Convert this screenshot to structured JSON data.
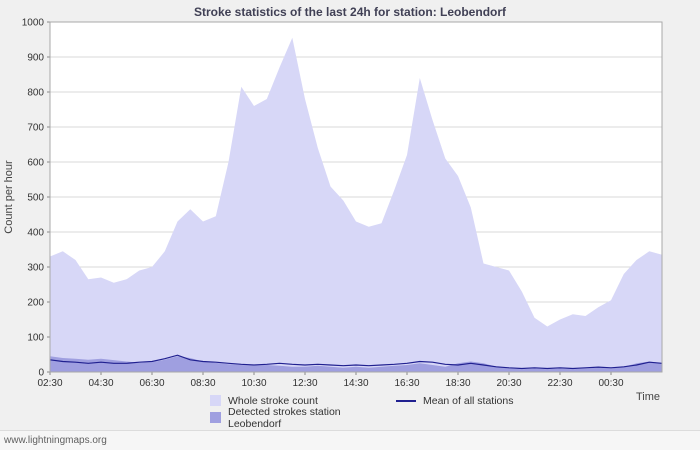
{
  "header": {
    "title": "Stroke statistics of the last 24h for station: Leobendorf"
  },
  "footer": {
    "watermark": "www.lightningmaps.org"
  },
  "chart_data": {
    "type": "area",
    "title": "Stroke statistics of the last 24h for station: Leobendorf",
    "xlabel": "Time",
    "ylabel": "Count per hour",
    "ylim": [
      0,
      1000
    ],
    "xlim_hours": [
      0,
      24
    ],
    "x_step_hours": 0.5,
    "y_ticks": [
      0,
      100,
      200,
      300,
      400,
      500,
      600,
      700,
      800,
      900,
      1000
    ],
    "x_tick_hours": [
      0,
      2,
      4,
      6,
      8,
      10,
      12,
      14,
      16,
      18,
      20,
      22
    ],
    "x_tick_labels": [
      "02:30",
      "04:30",
      "06:30",
      "08:30",
      "10:30",
      "12:30",
      "14:30",
      "16:30",
      "18:30",
      "20:30",
      "22:30",
      "00:30"
    ],
    "grid": "horizontal",
    "legend_position": "bottom",
    "colors": {
      "plot_bg": "#ffffff",
      "grid": "#d9d9d9",
      "axis": "#a8a8a8",
      "tick": "#888888"
    },
    "series": [
      {
        "name": "Whole stroke count",
        "kind": "area",
        "color": "#d7d7f7",
        "values": [
          330,
          345,
          320,
          265,
          270,
          255,
          265,
          290,
          300,
          345,
          430,
          465,
          430,
          445,
          600,
          815,
          760,
          780,
          870,
          955,
          780,
          640,
          530,
          490,
          430,
          415,
          425,
          520,
          620,
          840,
          720,
          610,
          560,
          470,
          310,
          300,
          290,
          230,
          155,
          130,
          150,
          165,
          160,
          185,
          205,
          280,
          320,
          345,
          335
        ]
      },
      {
        "name": "Detected strokes station Leobendorf",
        "kind": "area",
        "color": "#9f9fe0",
        "values": [
          45,
          40,
          38,
          35,
          38,
          34,
          30,
          26,
          28,
          35,
          45,
          40,
          30,
          26,
          22,
          20,
          18,
          20,
          18,
          15,
          15,
          18,
          15,
          12,
          15,
          12,
          15,
          18,
          20,
          25,
          20,
          15,
          25,
          30,
          25,
          15,
          10,
          8,
          10,
          8,
          10,
          8,
          10,
          12,
          10,
          15,
          25,
          30,
          25
        ]
      },
      {
        "name": "Mean of all stations",
        "kind": "line",
        "color": "#202090",
        "values": [
          35,
          30,
          28,
          25,
          28,
          25,
          25,
          28,
          30,
          38,
          48,
          35,
          30,
          28,
          25,
          22,
          20,
          22,
          25,
          22,
          20,
          22,
          20,
          18,
          20,
          18,
          20,
          22,
          25,
          30,
          28,
          22,
          20,
          25,
          20,
          15,
          12,
          10,
          12,
          10,
          12,
          10,
          12,
          14,
          12,
          15,
          20,
          28,
          25
        ]
      }
    ]
  }
}
